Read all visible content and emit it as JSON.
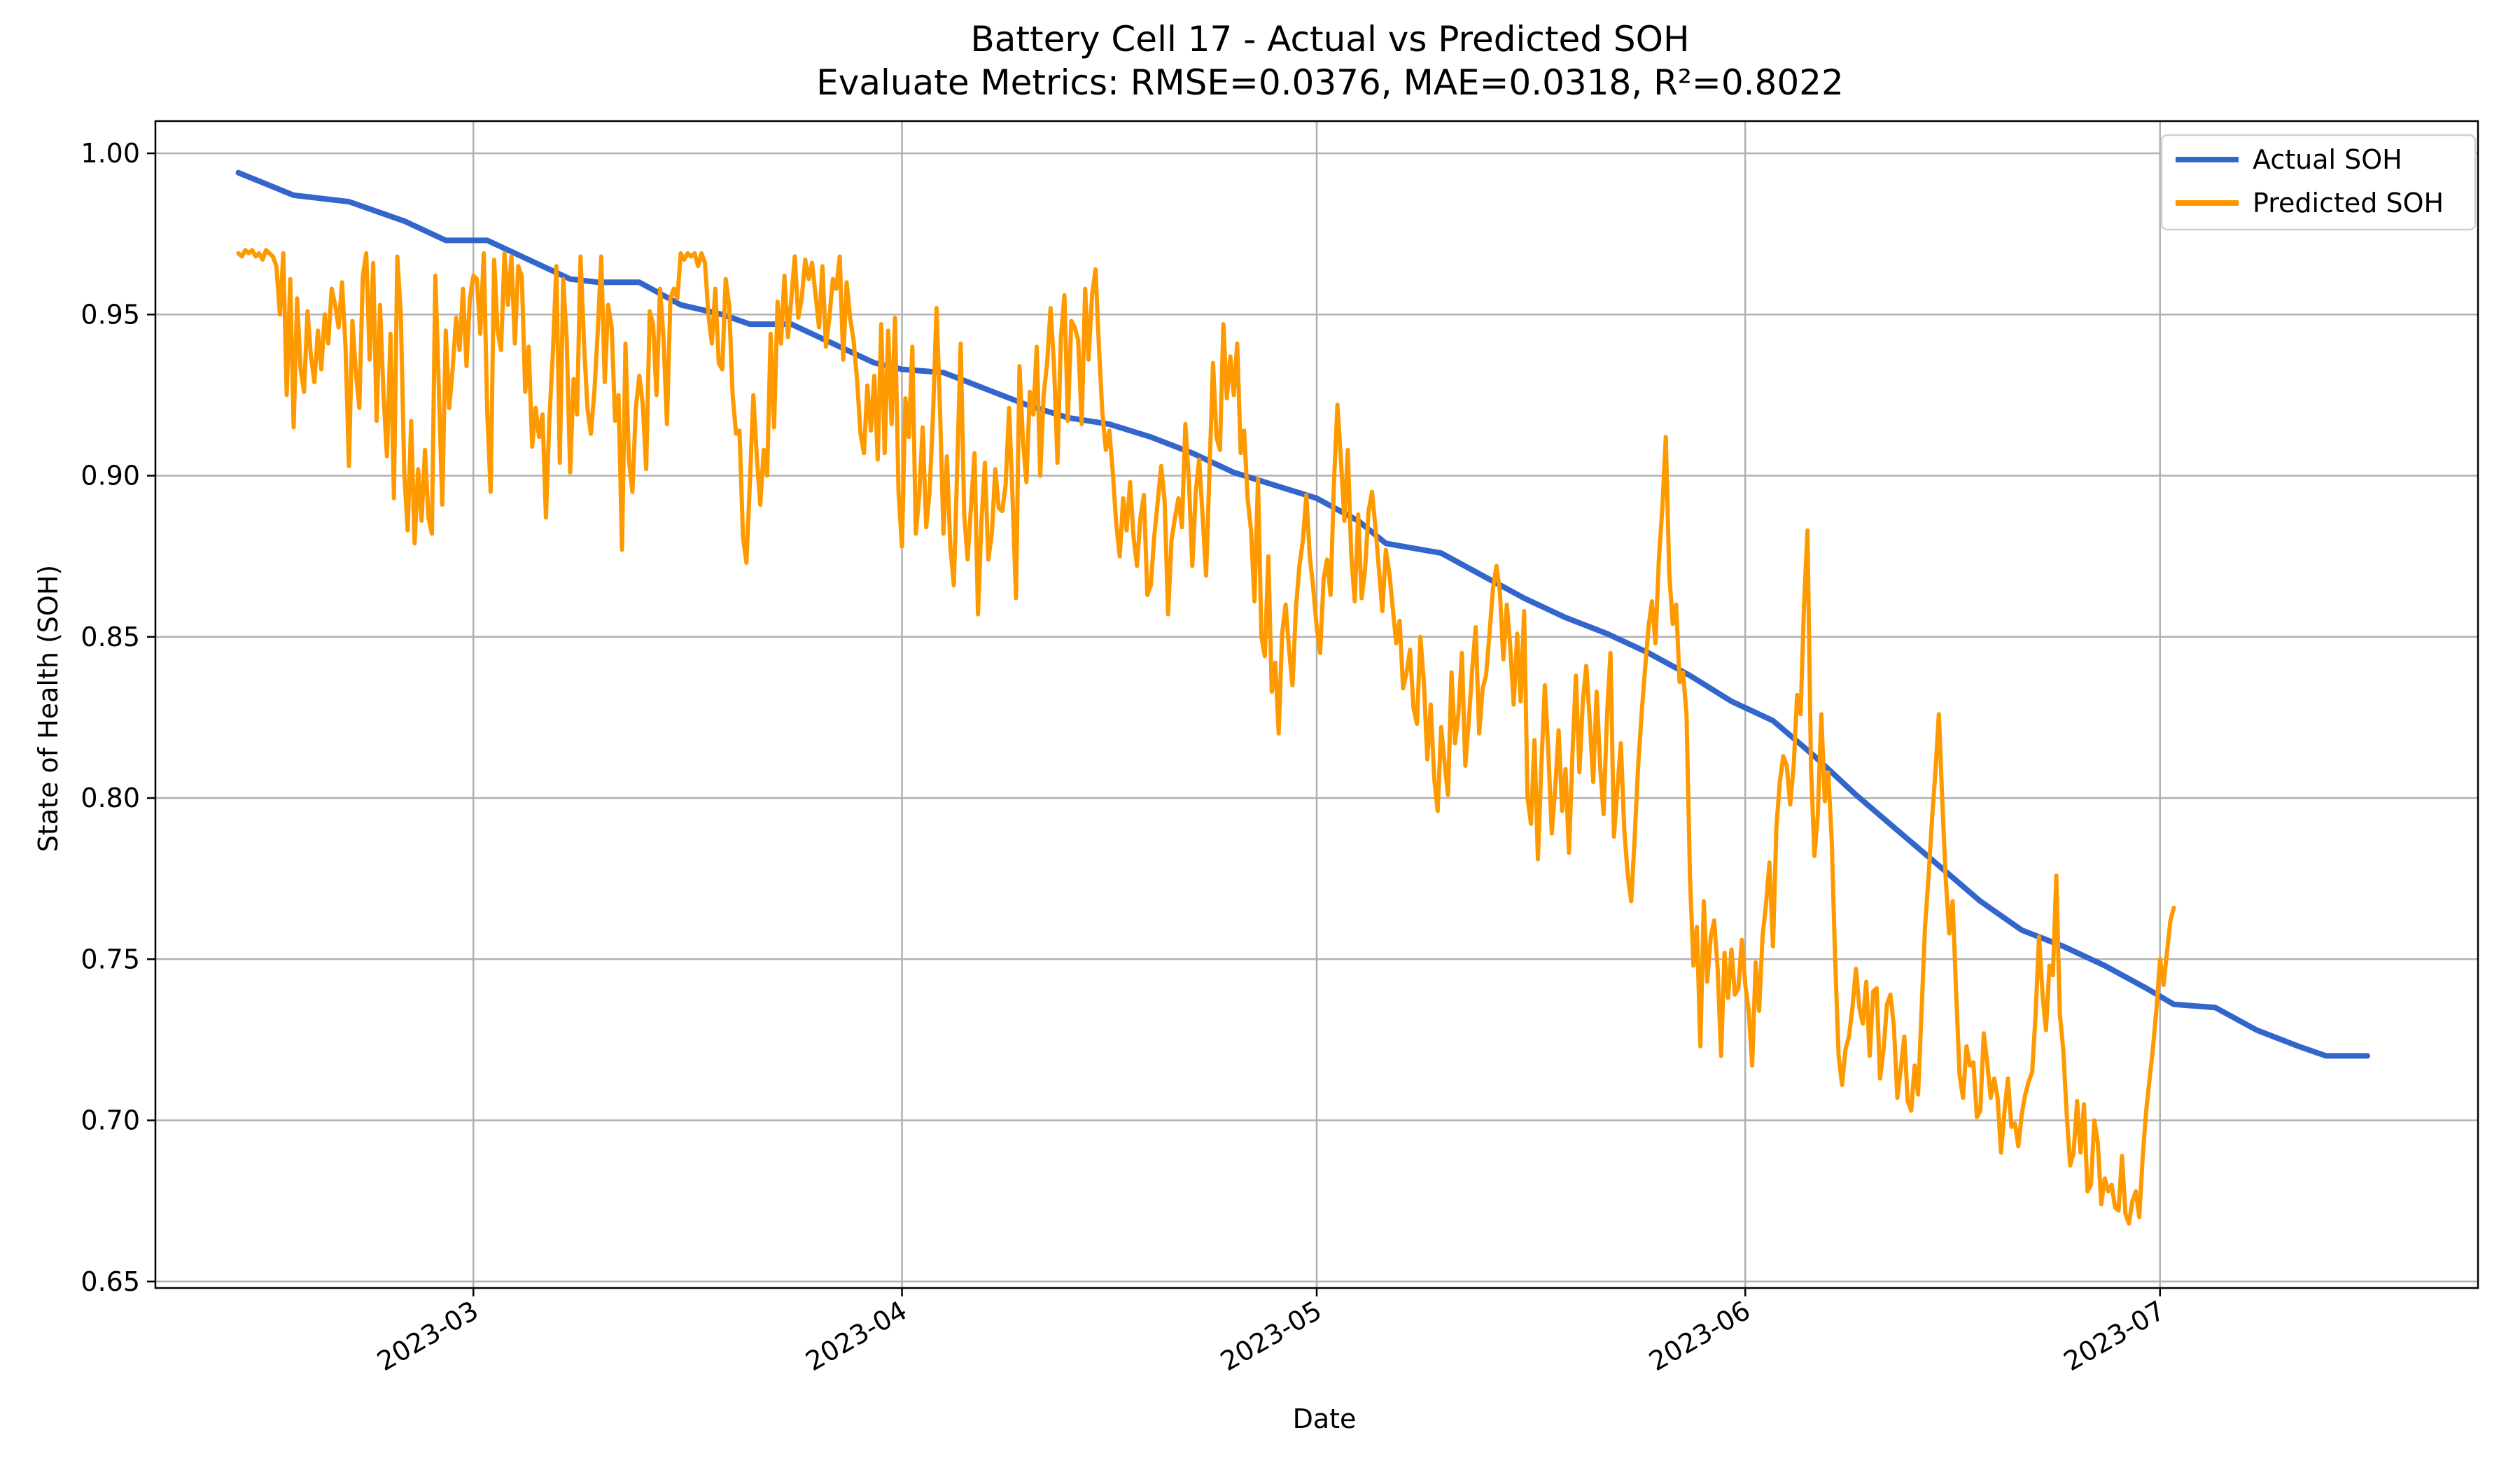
{
  "chart_data": {
    "type": "line",
    "title": "Battery Cell 17 - Actual vs Predicted SOH",
    "subtitle": "Evaluate Metrics: RMSE=0.0376, MAE=0.0318, R²=0.8022",
    "xlabel": "Date",
    "ylabel": "State of Health (SOH)",
    "xlim": [
      "2023-02-06",
      "2023-07-24"
    ],
    "ylim": [
      0.648,
      1.01
    ],
    "grid": true,
    "legend_position": "top-right",
    "x_ticks": [
      {
        "date": "2023-03-01",
        "label": "2023-03"
      },
      {
        "date": "2023-04-01",
        "label": "2023-04"
      },
      {
        "date": "2023-05-01",
        "label": "2023-05"
      },
      {
        "date": "2023-06-01",
        "label": "2023-06"
      },
      {
        "date": "2023-07-01",
        "label": "2023-07"
      }
    ],
    "y_ticks": [
      0.65,
      0.7,
      0.75,
      0.8,
      0.85,
      0.9,
      0.95,
      1.0
    ],
    "y_tick_labels": [
      "0.65",
      "0.70",
      "0.75",
      "0.80",
      "0.85",
      "0.90",
      "0.95",
      "1.00"
    ],
    "series": [
      {
        "name": "Actual SOH",
        "color": "#3366cc",
        "points": [
          [
            "2023-02-12",
            0.994
          ],
          [
            "2023-02-16",
            0.987
          ],
          [
            "2023-02-20",
            0.985
          ],
          [
            "2023-02-24",
            0.979
          ],
          [
            "2023-02-27",
            0.973
          ],
          [
            "2023-03-02",
            0.973
          ],
          [
            "2023-03-05",
            0.967
          ],
          [
            "2023-03-08",
            0.961
          ],
          [
            "2023-03-10",
            0.96
          ],
          [
            "2023-03-13",
            0.96
          ],
          [
            "2023-03-16",
            0.953
          ],
          [
            "2023-03-19",
            0.95
          ],
          [
            "2023-03-21",
            0.947
          ],
          [
            "2023-03-24",
            0.947
          ],
          [
            "2023-03-27",
            0.941
          ],
          [
            "2023-03-30",
            0.935
          ],
          [
            "2023-04-01",
            0.933
          ],
          [
            "2023-04-04",
            0.932
          ],
          [
            "2023-04-07",
            0.927
          ],
          [
            "2023-04-10",
            0.922
          ],
          [
            "2023-04-13",
            0.918
          ],
          [
            "2023-04-16",
            0.916
          ],
          [
            "2023-04-19",
            0.912
          ],
          [
            "2023-04-22",
            0.907
          ],
          [
            "2023-04-25",
            0.901
          ],
          [
            "2023-04-28",
            0.897
          ],
          [
            "2023-05-01",
            0.893
          ],
          [
            "2023-05-04",
            0.886
          ],
          [
            "2023-05-06",
            0.879
          ],
          [
            "2023-05-10",
            0.876
          ],
          [
            "2023-05-13",
            0.869
          ],
          [
            "2023-05-16",
            0.862
          ],
          [
            "2023-05-19",
            0.856
          ],
          [
            "2023-05-22",
            0.851
          ],
          [
            "2023-05-25",
            0.845
          ],
          [
            "2023-05-28",
            0.838
          ],
          [
            "2023-05-31",
            0.83
          ],
          [
            "2023-06-03",
            0.824
          ],
          [
            "2023-06-06",
            0.813
          ],
          [
            "2023-06-09",
            0.801
          ],
          [
            "2023-06-12",
            0.79
          ],
          [
            "2023-06-15",
            0.779
          ],
          [
            "2023-06-18",
            0.768
          ],
          [
            "2023-06-21",
            0.759
          ],
          [
            "2023-06-24",
            0.754
          ],
          [
            "2023-06-27",
            0.748
          ],
          [
            "2023-06-30",
            0.741
          ],
          [
            "2023-07-02",
            0.736
          ],
          [
            "2023-07-05",
            0.735
          ],
          [
            "2023-07-08",
            0.728
          ],
          [
            "2023-07-11",
            0.723
          ],
          [
            "2023-07-13",
            0.72
          ],
          [
            "2023-07-16",
            0.72
          ]
        ]
      },
      {
        "name": "Predicted SOH",
        "color": "#ff9900",
        "start_date": "2023-02-12",
        "step_days": 0.25,
        "values": [
          0.969,
          0.968,
          0.97,
          0.969,
          0.97,
          0.968,
          0.969,
          0.967,
          0.97,
          0.969,
          0.968,
          0.965,
          0.95,
          0.969,
          0.925,
          0.961,
          0.915,
          0.955,
          0.933,
          0.926,
          0.951,
          0.937,
          0.929,
          0.945,
          0.933,
          0.95,
          0.941,
          0.958,
          0.953,
          0.946,
          0.96,
          0.94,
          0.903,
          0.948,
          0.932,
          0.921,
          0.962,
          0.969,
          0.936,
          0.966,
          0.917,
          0.953,
          0.925,
          0.906,
          0.944,
          0.893,
          0.968,
          0.95,
          0.901,
          0.883,
          0.917,
          0.879,
          0.902,
          0.886,
          0.908,
          0.887,
          0.882,
          0.962,
          0.927,
          0.891,
          0.945,
          0.921,
          0.933,
          0.949,
          0.939,
          0.958,
          0.934,
          0.955,
          0.962,
          0.961,
          0.944,
          0.969,
          0.92,
          0.895,
          0.967,
          0.945,
          0.939,
          0.969,
          0.953,
          0.968,
          0.941,
          0.965,
          0.962,
          0.926,
          0.94,
          0.909,
          0.921,
          0.912,
          0.919,
          0.887,
          0.918,
          0.938,
          0.965,
          0.904,
          0.961,
          0.942,
          0.901,
          0.93,
          0.919,
          0.968,
          0.941,
          0.921,
          0.913,
          0.926,
          0.945,
          0.968,
          0.929,
          0.953,
          0.946,
          0.917,
          0.925,
          0.877,
          0.941,
          0.905,
          0.895,
          0.921,
          0.931,
          0.922,
          0.902,
          0.951,
          0.947,
          0.925,
          0.958,
          0.943,
          0.916,
          0.955,
          0.958,
          0.955,
          0.969,
          0.967,
          0.969,
          0.968,
          0.969,
          0.965,
          0.969,
          0.966,
          0.95,
          0.941,
          0.958,
          0.935,
          0.933,
          0.961,
          0.953,
          0.925,
          0.913,
          0.914,
          0.881,
          0.873,
          0.898,
          0.925,
          0.906,
          0.891,
          0.908,
          0.9,
          0.944,
          0.915,
          0.954,
          0.941,
          0.962,
          0.943,
          0.955,
          0.968,
          0.949,
          0.955,
          0.967,
          0.961,
          0.966,
          0.956,
          0.946,
          0.965,
          0.94,
          0.949,
          0.961,
          0.958,
          0.968,
          0.936,
          0.96,
          0.949,
          0.942,
          0.93,
          0.913,
          0.907,
          0.928,
          0.914,
          0.931,
          0.905,
          0.947,
          0.907,
          0.945,
          0.916,
          0.949,
          0.895,
          0.878,
          0.924,
          0.912,
          0.94,
          0.882,
          0.894,
          0.915,
          0.884,
          0.895,
          0.919,
          0.952,
          0.921,
          0.882,
          0.906,
          0.878,
          0.866,
          0.903,
          0.941,
          0.888,
          0.874,
          0.891,
          0.907,
          0.857,
          0.886,
          0.904,
          0.874,
          0.882,
          0.902,
          0.89,
          0.889,
          0.897,
          0.921,
          0.893,
          0.862,
          0.934,
          0.911,
          0.898,
          0.926,
          0.919,
          0.94,
          0.9,
          0.925,
          0.935,
          0.952,
          0.934,
          0.904,
          0.943,
          0.956,
          0.917,
          0.948,
          0.946,
          0.942,
          0.916,
          0.958,
          0.936,
          0.956,
          0.964,
          0.94,
          0.919,
          0.908,
          0.914,
          0.901,
          0.885,
          0.875,
          0.893,
          0.883,
          0.898,
          0.881,
          0.872,
          0.887,
          0.894,
          0.863,
          0.866,
          0.881,
          0.892,
          0.903,
          0.892,
          0.857,
          0.88,
          0.887,
          0.893,
          0.884,
          0.916,
          0.899,
          0.872,
          0.895,
          0.905,
          0.887,
          0.869,
          0.902,
          0.935,
          0.912,
          0.908,
          0.947,
          0.924,
          0.937,
          0.925,
          0.941,
          0.907,
          0.914,
          0.893,
          0.883,
          0.861,
          0.899,
          0.85,
          0.844,
          0.875,
          0.833,
          0.842,
          0.82,
          0.851,
          0.86,
          0.846,
          0.835,
          0.859,
          0.872,
          0.88,
          0.894,
          0.875,
          0.865,
          0.853,
          0.845,
          0.868,
          0.874,
          0.863,
          0.898,
          0.922,
          0.905,
          0.886,
          0.908,
          0.875,
          0.861,
          0.888,
          0.862,
          0.871,
          0.889,
          0.895,
          0.884,
          0.871,
          0.858,
          0.877,
          0.87,
          0.859,
          0.848,
          0.855,
          0.834,
          0.839,
          0.846,
          0.828,
          0.823,
          0.85,
          0.836,
          0.812,
          0.829,
          0.806,
          0.796,
          0.822,
          0.811,
          0.801,
          0.839,
          0.817,
          0.826,
          0.845,
          0.81,
          0.824,
          0.84,
          0.853,
          0.82,
          0.834,
          0.838,
          0.851,
          0.865,
          0.872,
          0.864,
          0.843,
          0.86,
          0.847,
          0.829,
          0.851,
          0.83,
          0.858,
          0.8,
          0.792,
          0.818,
          0.781,
          0.81,
          0.835,
          0.815,
          0.789,
          0.803,
          0.821,
          0.796,
          0.809,
          0.783,
          0.814,
          0.838,
          0.808,
          0.83,
          0.841,
          0.824,
          0.805,
          0.833,
          0.81,
          0.795,
          0.826,
          0.845,
          0.788,
          0.803,
          0.817,
          0.79,
          0.776,
          0.768,
          0.788,
          0.81,
          0.826,
          0.84,
          0.853,
          0.861,
          0.848,
          0.874,
          0.89,
          0.912,
          0.87,
          0.854,
          0.86,
          0.836,
          0.839,
          0.826,
          0.775,
          0.748,
          0.76,
          0.723,
          0.768,
          0.743,
          0.757,
          0.762,
          0.747,
          0.72,
          0.752,
          0.738,
          0.753,
          0.739,
          0.741,
          0.756,
          0.742,
          0.734,
          0.717,
          0.749,
          0.734,
          0.757,
          0.767,
          0.78,
          0.754,
          0.791,
          0.805,
          0.813,
          0.81,
          0.798,
          0.81,
          0.832,
          0.826,
          0.86,
          0.883,
          0.81,
          0.782,
          0.795,
          0.826,
          0.799,
          0.808,
          0.787,
          0.75,
          0.72,
          0.711,
          0.722,
          0.726,
          0.735,
          0.747,
          0.735,
          0.73,
          0.743,
          0.72,
          0.74,
          0.741,
          0.713,
          0.722,
          0.736,
          0.739,
          0.729,
          0.707,
          0.716,
          0.726,
          0.706,
          0.703,
          0.717,
          0.708,
          0.734,
          0.76,
          0.775,
          0.793,
          0.808,
          0.826,
          0.799,
          0.775,
          0.758,
          0.768,
          0.74,
          0.714,
          0.707,
          0.723,
          0.717,
          0.718,
          0.701,
          0.703,
          0.727,
          0.718,
          0.707,
          0.713,
          0.707,
          0.69,
          0.703,
          0.713,
          0.698,
          0.699,
          0.692,
          0.702,
          0.708,
          0.712,
          0.715,
          0.733,
          0.757,
          0.739,
          0.728,
          0.748,
          0.745,
          0.776,
          0.733,
          0.722,
          0.702,
          0.686,
          0.69,
          0.706,
          0.69,
          0.705,
          0.678,
          0.68,
          0.7,
          0.693,
          0.674,
          0.682,
          0.678,
          0.68,
          0.673,
          0.672,
          0.689,
          0.671,
          0.668,
          0.675,
          0.678,
          0.67,
          0.689,
          0.703,
          0.713,
          0.723,
          0.735,
          0.75,
          0.742,
          0.752,
          0.762,
          0.766
        ]
      }
    ]
  }
}
